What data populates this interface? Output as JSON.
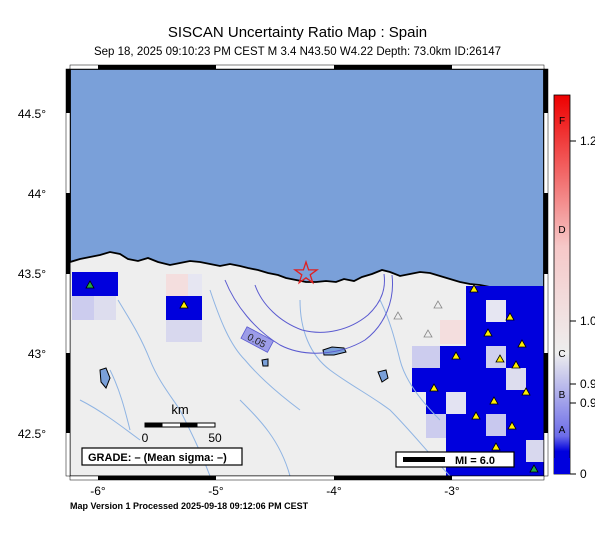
{
  "header": {
    "title": "SISCAN Uncertainty Ratio Map : Spain",
    "subtitle": "Sep 18, 2025 09:10:23 PM CEST   M 3.4    N43.50 W4.22   Depth: 73.0km    ID:26147"
  },
  "axes": {
    "lat_ticks": [
      "44.5°",
      "44°",
      "43.5°",
      "43°",
      "42.5°"
    ],
    "lon_ticks": [
      "-6°",
      "-5°",
      "-4°",
      "-3°"
    ]
  },
  "map": {
    "contour_label": "0.05",
    "scale_bar": {
      "unit": "km",
      "start": "0",
      "end": "50"
    },
    "grade_box": "GRADE: – (Mean sigma: –)",
    "mi_legend": "MI = 6.0",
    "colors": {
      "sea": "#7aa0d9",
      "land": "#eeeeee",
      "rivers": "#8fb4e3",
      "cell_blue": "#0000dd",
      "epicenter": "#e02020"
    }
  },
  "colorbar": {
    "ticks": [
      "1.2",
      "1.0",
      "0.9",
      "0.9",
      "0"
    ],
    "grades": [
      "F",
      "D",
      "C",
      "B",
      "A"
    ]
  },
  "footer": {
    "text": "Map Version 1 Processed 2025-09-18 09:12:06 PM CEST"
  }
}
